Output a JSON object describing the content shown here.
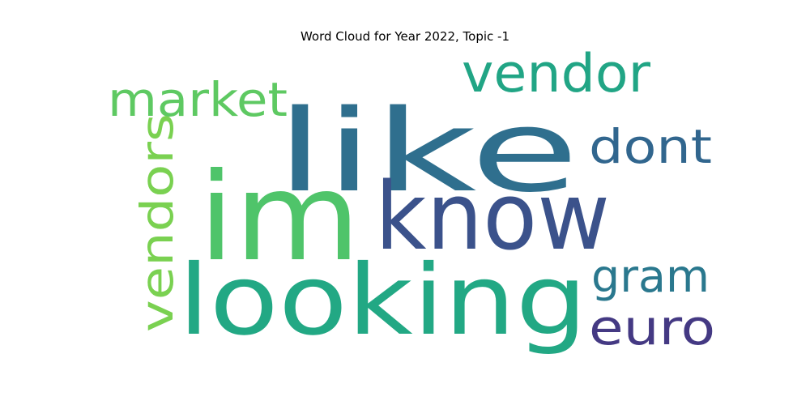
{
  "title": "Word Cloud for Year 2022, Topic -1",
  "words": [
    {
      "id": "like",
      "text": "like",
      "color": "#2f6f8e"
    },
    {
      "id": "im",
      "text": "im",
      "color": "#4fc46a"
    },
    {
      "id": "looking",
      "text": "looking",
      "color": "#22a884"
    },
    {
      "id": "know",
      "text": "know",
      "color": "#3b528b"
    },
    {
      "id": "vendor",
      "text": "vendor",
      "color": "#21a585"
    },
    {
      "id": "market",
      "text": "market",
      "color": "#5ec962"
    },
    {
      "id": "dont",
      "text": "dont",
      "color": "#31668e"
    },
    {
      "id": "vendors",
      "text": "vendors",
      "color": "#7ad151"
    },
    {
      "id": "gram",
      "text": "gram",
      "color": "#2a788e"
    },
    {
      "id": "euro",
      "text": "euro",
      "color": "#443983"
    }
  ]
}
